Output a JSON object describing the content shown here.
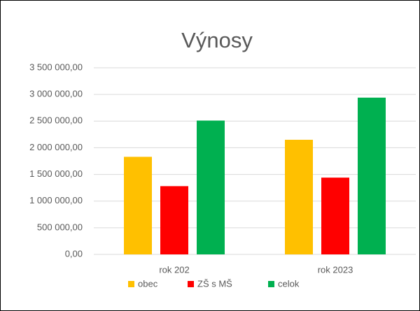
{
  "chart_data": {
    "type": "bar",
    "title": "Výnosy",
    "categories": [
      "rok 202",
      "rok 2023"
    ],
    "series": [
      {
        "name": "obec",
        "color": "#ffc000",
        "values": [
          1830000,
          2150000
        ]
      },
      {
        "name": "ZŠ s MŠ",
        "color": "#ff0000",
        "values": [
          1280000,
          1440000
        ]
      },
      {
        "name": "celok",
        "color": "#00b050",
        "values": [
          2510000,
          2940000
        ]
      }
    ],
    "ylim": [
      0,
      3500000
    ],
    "yticks": [
      {
        "value": 0,
        "label": "0,00"
      },
      {
        "value": 500000,
        "label": "500 000,00"
      },
      {
        "value": 1000000,
        "label": "1 000 000,00"
      },
      {
        "value": 1500000,
        "label": "1 500 000,00"
      },
      {
        "value": 2000000,
        "label": "2 000 000,00"
      },
      {
        "value": 2500000,
        "label": "2 500 000,00"
      },
      {
        "value": 3000000,
        "label": "3 000 000,00"
      },
      {
        "value": 3500000,
        "label": "3 500 000,00"
      }
    ],
    "grid": true,
    "legend": "bottom"
  }
}
